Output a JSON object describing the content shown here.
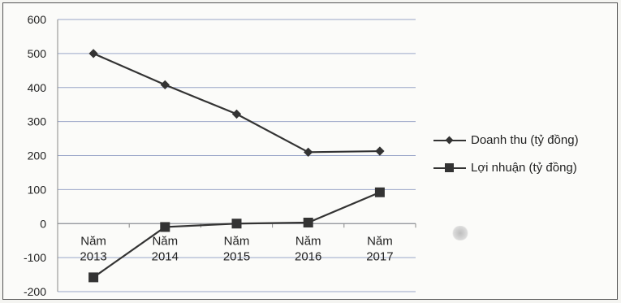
{
  "chart_data": {
    "type": "line",
    "categories": [
      "Năm\n2013",
      "Năm\n2014",
      "Năm\n2015",
      "Năm\n2016",
      "Năm\n2017"
    ],
    "series": [
      {
        "name": "Doanh thu (tỷ đồng)",
        "marker": "diamond",
        "values": [
          500,
          408,
          322,
          210,
          213
        ]
      },
      {
        "name": "Lợi nhuận (tỷ đồng)",
        "marker": "square",
        "values": [
          -158,
          -10,
          0,
          3,
          92
        ]
      }
    ],
    "ylim": [
      -200,
      600
    ],
    "yticks": [
      600,
      500,
      400,
      300,
      200,
      100,
      0,
      -100,
      -200
    ],
    "grid": true,
    "legend": "right",
    "colors": {
      "line": "#333333",
      "grid": "#9aa6c8",
      "axis": "#888888"
    }
  }
}
